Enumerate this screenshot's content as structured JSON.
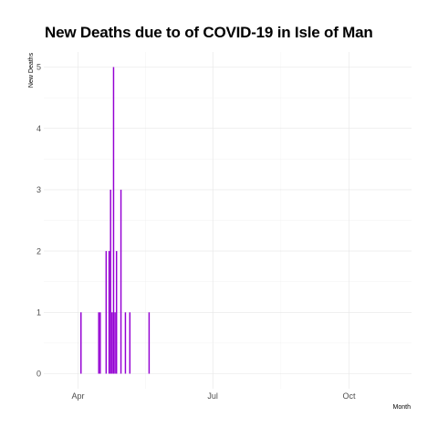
{
  "chart_data": {
    "type": "bar",
    "title": "New Deaths due to of COVID-19 in Isle of Man",
    "xlabel": "Month",
    "ylabel": "New Deaths",
    "color": "#9400d3",
    "ylim": [
      0,
      5
    ],
    "yticks": [
      0,
      1,
      2,
      3,
      4,
      5
    ],
    "xlim": [
      "2020-03-23",
      "2020-11-30"
    ],
    "xticks": [
      {
        "label": "Apr",
        "date": "2020-04-01"
      },
      {
        "label": "Jul",
        "date": "2020-07-01"
      },
      {
        "label": "Oct",
        "date": "2020-10-01"
      }
    ],
    "grid": true,
    "series": [
      {
        "name": "New Deaths",
        "points": [
          {
            "date": "2020-04-03",
            "value": 1
          },
          {
            "date": "2020-04-15",
            "value": 1
          },
          {
            "date": "2020-04-16",
            "value": 1
          },
          {
            "date": "2020-04-20",
            "value": 2
          },
          {
            "date": "2020-04-22",
            "value": 2
          },
          {
            "date": "2020-04-23",
            "value": 3
          },
          {
            "date": "2020-04-24",
            "value": 1
          },
          {
            "date": "2020-04-25",
            "value": 5
          },
          {
            "date": "2020-04-26",
            "value": 1
          },
          {
            "date": "2020-04-27",
            "value": 2
          },
          {
            "date": "2020-04-30",
            "value": 3
          },
          {
            "date": "2020-05-03",
            "value": 1
          },
          {
            "date": "2020-05-06",
            "value": 1
          },
          {
            "date": "2020-05-19",
            "value": 1
          }
        ]
      }
    ]
  }
}
